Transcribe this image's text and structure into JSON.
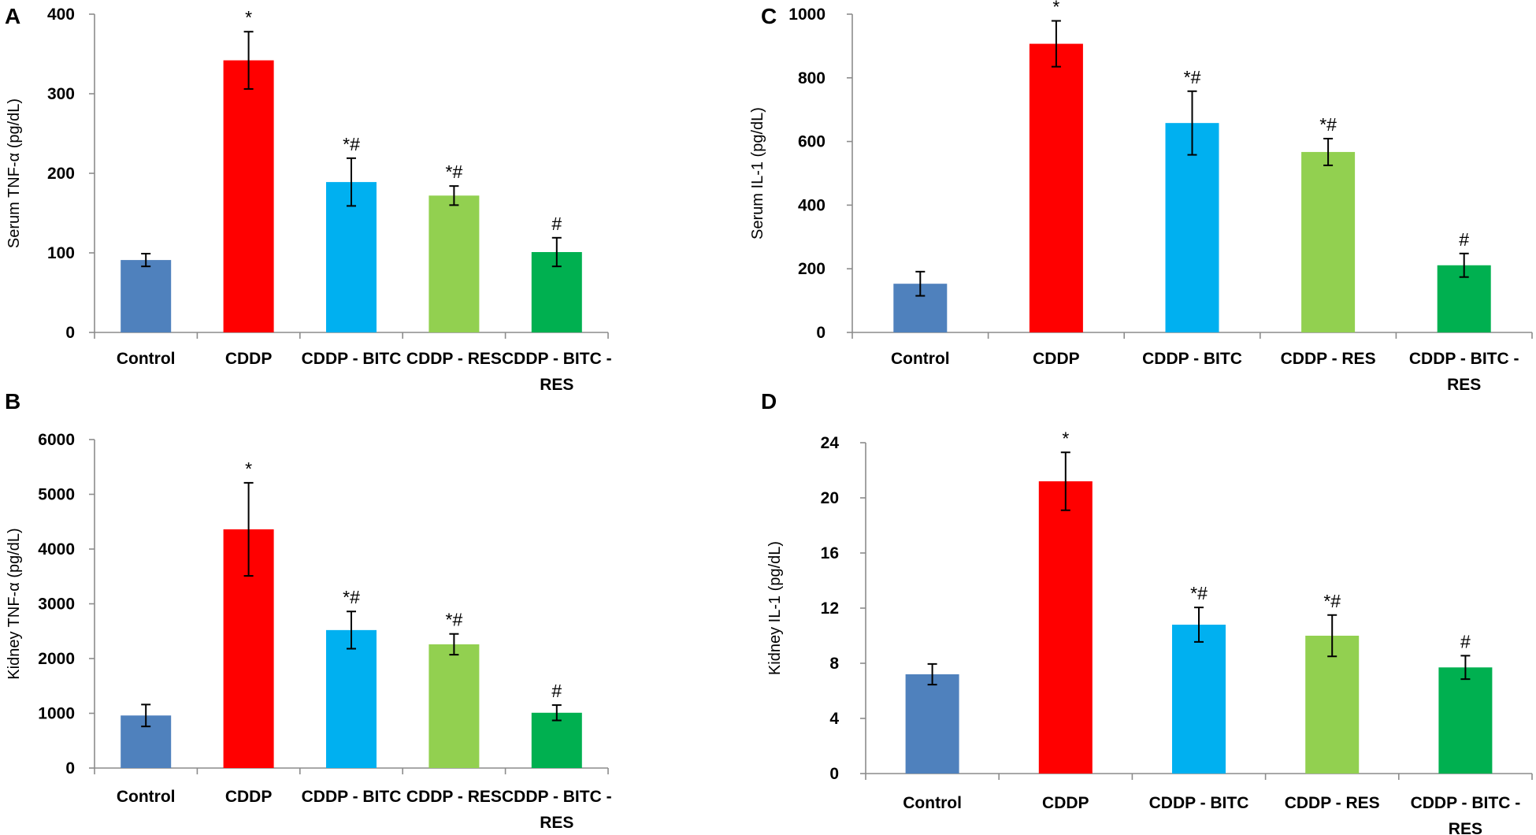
{
  "chart_data": [
    {
      "panel": "A",
      "type": "bar",
      "title": "",
      "xlabel": "",
      "ylabel": "Serum TNF-α (pg/dL)",
      "ylim": [
        0,
        400
      ],
      "yticks": [
        0,
        100,
        200,
        300,
        400
      ],
      "categories": [
        [
          "Control"
        ],
        [
          "CDDP"
        ],
        [
          "CDDP - BITC"
        ],
        [
          "CDDP - RES"
        ],
        [
          "CDDP - BITC -",
          "RES"
        ]
      ],
      "values": [
        91,
        342,
        189,
        172,
        101
      ],
      "errors": [
        8,
        36,
        30,
        12,
        18
      ],
      "annotations": [
        "",
        "*",
        "*#",
        "*#",
        "#"
      ],
      "colors": [
        "#4f81bd",
        "#ff0000",
        "#00b0f0",
        "#92d050",
        "#00b050"
      ]
    },
    {
      "panel": "B",
      "type": "bar",
      "title": "",
      "xlabel": "",
      "ylabel": "Kidney TNF-α (pg/dL)",
      "ylim": [
        0,
        6000
      ],
      "yticks": [
        0,
        1000,
        2000,
        3000,
        4000,
        5000,
        6000
      ],
      "categories": [
        [
          "Control"
        ],
        [
          "CDDP"
        ],
        [
          "CDDP - BITC"
        ],
        [
          "CDDP - RES"
        ],
        [
          "CDDP - BITC -",
          "RES"
        ]
      ],
      "values": [
        960,
        4360,
        2520,
        2260,
        1010
      ],
      "errors": [
        200,
        850,
        340,
        190,
        140
      ],
      "annotations": [
        "",
        "*",
        "*#",
        "*#",
        "#"
      ],
      "colors": [
        "#4f81bd",
        "#ff0000",
        "#00b0f0",
        "#92d050",
        "#00b050"
      ]
    },
    {
      "panel": "C",
      "type": "bar",
      "title": "",
      "xlabel": "",
      "ylabel": "Serum IL-1 (pg/dL)",
      "ylim": [
        0,
        1000
      ],
      "yticks": [
        0,
        200,
        400,
        600,
        800,
        1000
      ],
      "categories": [
        [
          "Control"
        ],
        [
          "CDDP"
        ],
        [
          "CDDP - BITC"
        ],
        [
          "CDDP - RES"
        ],
        [
          "CDDP - BITC -",
          "RES"
        ]
      ],
      "values": [
        153,
        907,
        658,
        567,
        211
      ],
      "errors": [
        38,
        72,
        100,
        42,
        37
      ],
      "annotations": [
        "",
        "*",
        "*#",
        "*#",
        "#"
      ],
      "colors": [
        "#4f81bd",
        "#ff0000",
        "#00b0f0",
        "#92d050",
        "#00b050"
      ]
    },
    {
      "panel": "D",
      "type": "bar",
      "title": "",
      "xlabel": "",
      "ylabel": "Kidney IL-1 (pg/dL)",
      "ylim": [
        0,
        24
      ],
      "yticks": [
        0,
        4,
        8,
        12,
        16,
        20,
        24
      ],
      "categories": [
        [
          "Control"
        ],
        [
          "CDDP"
        ],
        [
          "CDDP - BITC"
        ],
        [
          "CDDP - RES"
        ],
        [
          "CDDP - BITC -",
          "RES"
        ]
      ],
      "values": [
        7.2,
        21.2,
        10.8,
        10.0,
        7.7
      ],
      "errors": [
        0.75,
        2.1,
        1.25,
        1.5,
        0.85
      ],
      "annotations": [
        "",
        "*",
        "*#",
        "*#",
        "#"
      ],
      "colors": [
        "#4f81bd",
        "#ff0000",
        "#00b0f0",
        "#92d050",
        "#00b050"
      ]
    }
  ]
}
